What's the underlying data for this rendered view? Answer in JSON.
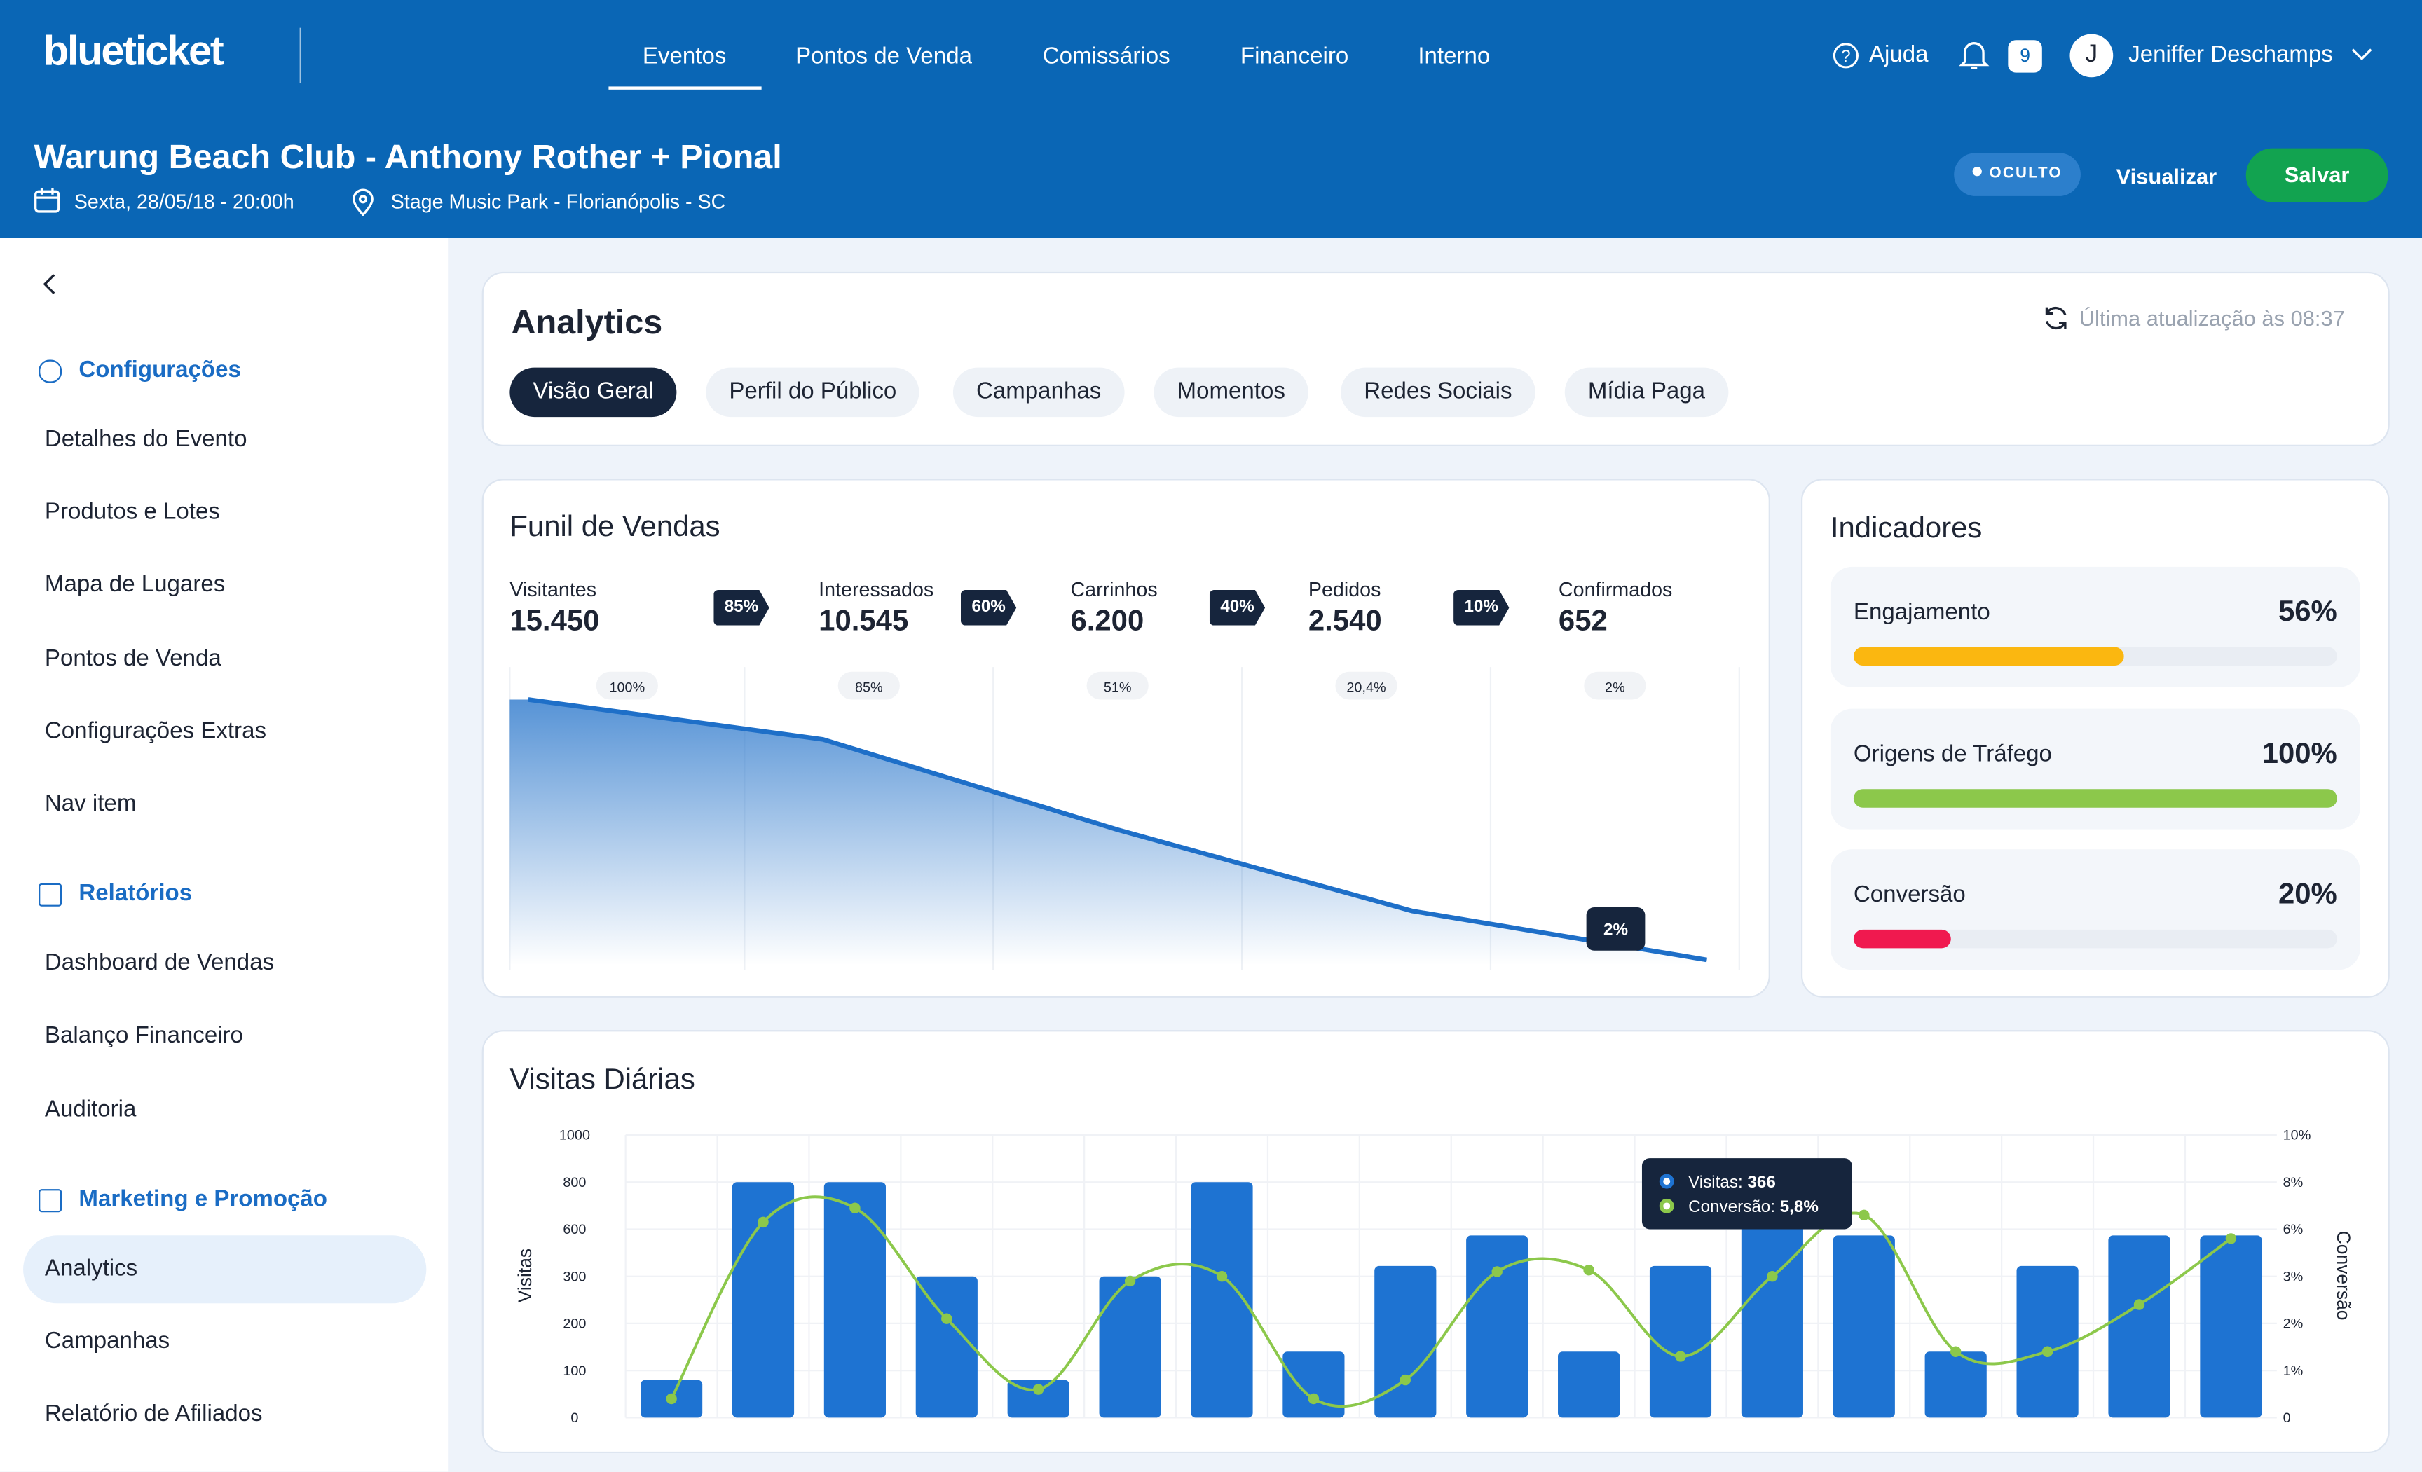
{
  "header": {
    "logo": "blueticket",
    "nav": [
      "Eventos",
      "Pontos de Venda",
      "Comissários",
      "Financeiro",
      "Interno"
    ],
    "help": "Ajuda",
    "notifications": "9",
    "avatar": "J",
    "user": "Jeniffer Deschamps"
  },
  "event": {
    "title": "Warung Beach Club - Anthony Rother + Pional",
    "date": "Sexta, 28/05/18 - 20:00h",
    "location": "Stage Music Park - Florianópolis - SC",
    "status": "OCULTO",
    "preview": "Visualizar",
    "save": "Salvar"
  },
  "sidebar": {
    "sections": [
      {
        "title": "Configurações",
        "items": [
          "Detalhes do Evento",
          "Produtos e Lotes",
          "Mapa de Lugares",
          "Pontos de Venda",
          "Configurações Extras",
          "Nav item"
        ]
      },
      {
        "title": "Relatórios",
        "items": [
          "Dashboard de Vendas",
          "Balanço Financeiro",
          "Auditoria"
        ]
      },
      {
        "title": "Marketing e Promoção",
        "items": [
          "Analytics",
          "Campanhas",
          "Relatório de Afiliados"
        ]
      }
    ]
  },
  "analytics": {
    "title": "Analytics",
    "updated": "Última atualização às 08:37",
    "tabs": [
      "Visão Geral",
      "Perfil do Público",
      "Campanhas",
      "Momentos",
      "Redes Sociais",
      "Mídia Paga"
    ]
  },
  "funnel": {
    "steps": [
      {
        "name": "Visitantes",
        "value": "15.450"
      },
      {
        "name": "Interessados",
        "value": "10.545"
      },
      {
        "name": "Carrinhos",
        "value": "6.200"
      },
      {
        "name": "Pedidos",
        "value": "2.540"
      },
      {
        "name": "Confirmados",
        "value": "652"
      }
    ],
    "rates": [
      "85%",
      "60%",
      "40%",
      "10%"
    ]
  },
  "indicators": {
    "title": "Indicadores",
    "items": [
      {
        "name": "Engajamento",
        "value": 56,
        "value_label": "56%",
        "color": "#fbb710"
      },
      {
        "name": "Origens de Tráfego",
        "value": 100,
        "value_label": "100%",
        "color": "#8cc84b"
      },
      {
        "name": "Conversão",
        "value": 20,
        "value_label": "20%",
        "color": "#f0194f"
      }
    ]
  },
  "visits_tooltip": {
    "visits_label": "Visitas:",
    "visits_value": "366",
    "conversion_label": "Conversão:",
    "conversion_value": "5,8%"
  },
  "chart_data": [
    {
      "type": "area",
      "title": "Funil de Vendas",
      "color": "#1e6fc8",
      "ylim": [
        0,
        100
      ],
      "values": [
        100,
        85,
        51,
        20.4,
        2
      ],
      "value_labels": [
        "100%",
        "85%",
        "51%",
        "20,4%",
        "2%"
      ]
    },
    {
      "type": "bar",
      "title": "Visitas Diárias",
      "ylabel": "Visitas",
      "y2label": "Conversão",
      "categories": [
        null,
        null,
        null,
        null,
        null,
        null,
        null,
        null,
        null,
        null,
        null,
        null,
        null,
        null,
        null,
        null,
        null,
        null
      ],
      "ylim": [
        0,
        1000
      ],
      "yticks": [
        0,
        100,
        200,
        300,
        600,
        800,
        1000
      ],
      "y2lim": [
        0,
        10
      ],
      "y2ticks": [
        0,
        {
          "value": 1,
          "label": "1%"
        },
        {
          "value": 2,
          "label": "2%"
        },
        {
          "value": 3,
          "label": "3%"
        },
        {
          "value": 6,
          "label": "6%"
        },
        {
          "value": 8,
          "label": "8%"
        },
        {
          "value": 10,
          "label": "10%"
        }
      ],
      "grid": true,
      "series": [
        {
          "color": "#1e73d2",
          "values": [
            80,
            800,
            800,
            300,
            80,
            300,
            800,
            140,
            366,
            560,
            140,
            366,
            800,
            560,
            140,
            366,
            560,
            560
          ]
        },
        {
          "type": "line",
          "axis": "y2",
          "color": "#8cc84b",
          "values": [
            0.4,
            6.3,
            6.9,
            2.1,
            0.6,
            2.9,
            3,
            0.4,
            0.8,
            3.3,
            3.4,
            1.3,
            3,
            6.6,
            1.4,
            1.4,
            2.4,
            5.4
          ]
        }
      ]
    }
  ]
}
